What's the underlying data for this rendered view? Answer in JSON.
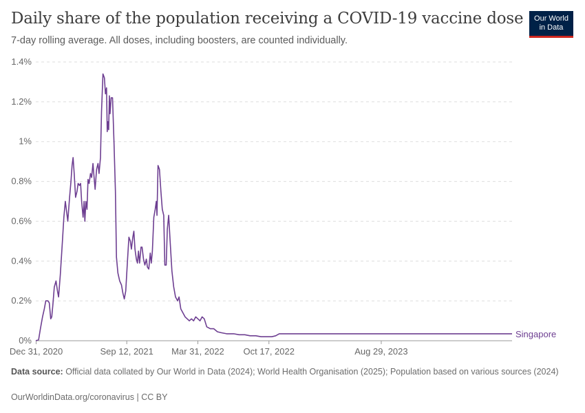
{
  "header": {
    "title": "Daily share of the population receiving a COVID-19 vaccine dose",
    "subtitle": "7-day rolling average. All doses, including boosters, are counted individually.",
    "logo_line1": "Our World",
    "logo_line2": "in Data"
  },
  "footer": {
    "source_label": "Data source:",
    "source_text": " Official data collated by Our World in Data (2024); World Health Organisation (2025); Population based on various sources (2024)",
    "url": "OurWorldinData.org/coronavirus | CC BY"
  },
  "colors": {
    "series": "#6d3e91",
    "grid": "#dddddd",
    "axis": "#999999",
    "logo_bg": "#002147",
    "logo_accent": "#ce261e"
  },
  "chart_data": {
    "type": "line",
    "title": "Daily share of the population receiving a COVID-19 vaccine dose",
    "subtitle": "7-day rolling average. All doses, including boosters, are counted individually.",
    "xlabel": "",
    "ylabel": "",
    "x_range": [
      "2020-12-30",
      "2024-08-31"
    ],
    "ylim": [
      0,
      1.4
    ],
    "y_ticks": [
      0,
      0.2,
      0.4,
      0.6,
      0.8,
      1,
      1.2,
      1.4
    ],
    "y_tick_labels": [
      "0%",
      "0.2%",
      "0.4%",
      "0.6%",
      "0.8%",
      "1%",
      "1.2%",
      "1.4%"
    ],
    "x_ticks": [
      "2020-12-31",
      "2021-09-12",
      "2022-03-31",
      "2022-10-17",
      "2023-08-29"
    ],
    "x_tick_labels": [
      "Dec 31, 2020",
      "Sep 12, 2021",
      "Mar 31, 2022",
      "Oct 17, 2022",
      "Aug 29, 2023"
    ],
    "grid": "horizontal dashed",
    "legend": "end-of-line label",
    "series": [
      {
        "name": "Singapore",
        "points": [
          [
            "2020-12-30",
            0
          ],
          [
            "2021-01-07",
            0.005
          ],
          [
            "2021-01-12",
            0.06
          ],
          [
            "2021-01-18",
            0.12
          ],
          [
            "2021-01-23",
            0.16
          ],
          [
            "2021-01-27",
            0.2
          ],
          [
            "2021-02-02",
            0.2
          ],
          [
            "2021-02-06",
            0.19
          ],
          [
            "2021-02-10",
            0.11
          ],
          [
            "2021-02-13",
            0.12
          ],
          [
            "2021-02-16",
            0.18
          ],
          [
            "2021-02-20",
            0.27
          ],
          [
            "2021-02-25",
            0.3
          ],
          [
            "2021-03-01",
            0.25
          ],
          [
            "2021-03-04",
            0.22
          ],
          [
            "2021-03-09",
            0.33
          ],
          [
            "2021-03-15",
            0.5
          ],
          [
            "2021-03-19",
            0.62
          ],
          [
            "2021-03-23",
            0.7
          ],
          [
            "2021-03-26",
            0.66
          ],
          [
            "2021-03-30",
            0.6
          ],
          [
            "2021-04-04",
            0.72
          ],
          [
            "2021-04-08",
            0.8
          ],
          [
            "2021-04-11",
            0.88
          ],
          [
            "2021-04-14",
            0.92
          ],
          [
            "2021-04-17",
            0.84
          ],
          [
            "2021-04-21",
            0.72
          ],
          [
            "2021-04-25",
            0.75
          ],
          [
            "2021-04-28",
            0.79
          ],
          [
            "2021-05-02",
            0.78
          ],
          [
            "2021-05-05",
            0.79
          ],
          [
            "2021-05-08",
            0.7
          ],
          [
            "2021-05-12",
            0.62
          ],
          [
            "2021-05-15",
            0.7
          ],
          [
            "2021-05-17",
            0.6
          ],
          [
            "2021-05-20",
            0.7
          ],
          [
            "2021-05-23",
            0.66
          ],
          [
            "2021-05-26",
            0.81
          ],
          [
            "2021-05-29",
            0.79
          ],
          [
            "2021-06-02",
            0.84
          ],
          [
            "2021-06-05",
            0.82
          ],
          [
            "2021-06-09",
            0.89
          ],
          [
            "2021-06-12",
            0.82
          ],
          [
            "2021-06-15",
            0.76
          ],
          [
            "2021-06-19",
            0.86
          ],
          [
            "2021-06-23",
            0.89
          ],
          [
            "2021-06-26",
            0.84
          ],
          [
            "2021-06-30",
            0.92
          ],
          [
            "2021-07-03",
            1.15
          ],
          [
            "2021-07-07",
            1.34
          ],
          [
            "2021-07-11",
            1.32
          ],
          [
            "2021-07-14",
            1.24
          ],
          [
            "2021-07-17",
            1.27
          ],
          [
            "2021-07-19",
            1.05
          ],
          [
            "2021-07-21",
            1.1
          ],
          [
            "2021-07-23",
            1.06
          ],
          [
            "2021-07-25",
            1.23
          ],
          [
            "2021-07-27",
            1.14
          ],
          [
            "2021-07-30",
            1.22
          ],
          [
            "2021-08-03",
            1.22
          ],
          [
            "2021-08-07",
            1.0
          ],
          [
            "2021-08-11",
            0.75
          ],
          [
            "2021-08-14",
            0.42
          ],
          [
            "2021-08-18",
            0.34
          ],
          [
            "2021-08-23",
            0.3
          ],
          [
            "2021-08-28",
            0.28
          ],
          [
            "2021-09-01",
            0.24
          ],
          [
            "2021-09-05",
            0.21
          ],
          [
            "2021-09-09",
            0.25
          ],
          [
            "2021-09-14",
            0.4
          ],
          [
            "2021-09-18",
            0.52
          ],
          [
            "2021-09-22",
            0.5
          ],
          [
            "2021-09-25",
            0.46
          ],
          [
            "2021-09-29",
            0.52
          ],
          [
            "2021-10-02",
            0.55
          ],
          [
            "2021-10-05",
            0.46
          ],
          [
            "2021-10-09",
            0.41
          ],
          [
            "2021-10-12",
            0.39
          ],
          [
            "2021-10-15",
            0.45
          ],
          [
            "2021-10-18",
            0.39
          ],
          [
            "2021-10-22",
            0.47
          ],
          [
            "2021-10-25",
            0.47
          ],
          [
            "2021-10-29",
            0.41
          ],
          [
            "2021-11-02",
            0.38
          ],
          [
            "2021-11-06",
            0.41
          ],
          [
            "2021-11-09",
            0.37
          ],
          [
            "2021-11-13",
            0.36
          ],
          [
            "2021-11-17",
            0.44
          ],
          [
            "2021-11-20",
            0.39
          ],
          [
            "2021-11-23",
            0.45
          ],
          [
            "2021-11-27",
            0.62
          ],
          [
            "2021-12-01",
            0.66
          ],
          [
            "2021-12-04",
            0.7
          ],
          [
            "2021-12-06",
            0.63
          ],
          [
            "2021-12-09",
            0.88
          ],
          [
            "2021-12-13",
            0.86
          ],
          [
            "2021-12-17",
            0.75
          ],
          [
            "2021-12-21",
            0.66
          ],
          [
            "2021-12-25",
            0.63
          ],
          [
            "2021-12-28",
            0.38
          ],
          [
            "2022-01-01",
            0.38
          ],
          [
            "2022-01-04",
            0.56
          ],
          [
            "2022-01-08",
            0.63
          ],
          [
            "2022-01-12",
            0.5
          ],
          [
            "2022-01-17",
            0.35
          ],
          [
            "2022-01-22",
            0.27
          ],
          [
            "2022-01-27",
            0.22
          ],
          [
            "2022-02-02",
            0.2
          ],
          [
            "2022-02-06",
            0.22
          ],
          [
            "2022-02-11",
            0.16
          ],
          [
            "2022-02-17",
            0.14
          ],
          [
            "2022-02-23",
            0.12
          ],
          [
            "2022-03-01",
            0.11
          ],
          [
            "2022-03-07",
            0.1
          ],
          [
            "2022-03-13",
            0.11
          ],
          [
            "2022-03-19",
            0.1
          ],
          [
            "2022-03-25",
            0.12
          ],
          [
            "2022-03-31",
            0.11
          ],
          [
            "2022-04-06",
            0.1
          ],
          [
            "2022-04-12",
            0.12
          ],
          [
            "2022-04-18",
            0.11
          ],
          [
            "2022-04-25",
            0.07
          ],
          [
            "2022-05-05",
            0.06
          ],
          [
            "2022-05-15",
            0.06
          ],
          [
            "2022-05-25",
            0.045
          ],
          [
            "2022-06-05",
            0.04
          ],
          [
            "2022-06-20",
            0.035
          ],
          [
            "2022-07-10",
            0.035
          ],
          [
            "2022-07-25",
            0.03
          ],
          [
            "2022-08-10",
            0.03
          ],
          [
            "2022-08-25",
            0.025
          ],
          [
            "2022-09-10",
            0.025
          ],
          [
            "2022-09-25",
            0.02
          ],
          [
            "2022-10-10",
            0.02
          ],
          [
            "2022-10-25",
            0.02
          ],
          [
            "2022-11-05",
            0.025
          ],
          [
            "2022-11-15",
            0.035
          ],
          [
            "2023-02-01",
            0.035
          ],
          [
            "2023-08-29",
            0.035
          ],
          [
            "2024-08-31",
            0.035
          ]
        ]
      }
    ]
  }
}
